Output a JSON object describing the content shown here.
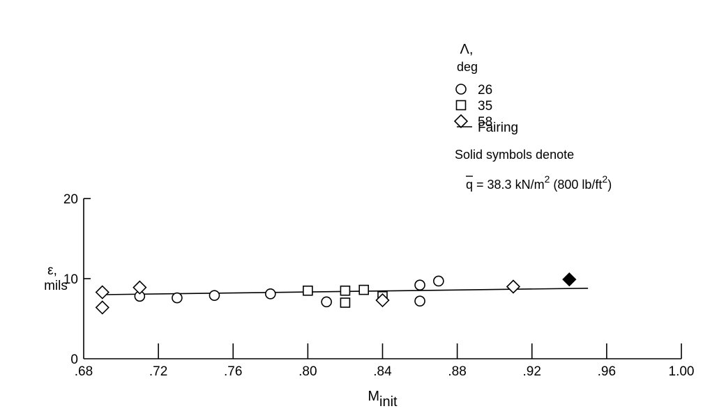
{
  "chart_data": {
    "type": "scatter",
    "xlabel": {
      "main": "M",
      "sub": "init"
    },
    "ylabel": {
      "line1": "ε,",
      "line2": "mils"
    },
    "xlim": [
      0.68,
      1.0
    ],
    "ylim": [
      0,
      20
    ],
    "x_ticks": [
      0.68,
      0.72,
      0.76,
      0.8,
      0.84,
      0.88,
      0.92,
      0.96,
      1.0
    ],
    "x_tick_labels": [
      ".68",
      ".72",
      ".76",
      ".80",
      ".84",
      ".88",
      ".92",
      ".96",
      "1.00"
    ],
    "y_ticks": [
      0,
      10,
      20
    ],
    "y_tick_labels": [
      "0",
      "10",
      "20"
    ],
    "grid": false,
    "legend": {
      "title_line1": "Λ,",
      "title_line2": "deg",
      "position": "top-right",
      "fairing_label": "Fairing",
      "note_line1": "Solid symbols denote",
      "note_line2": {
        "q": "q",
        "eq": " = 38.3 kN/m",
        "exp1": "2",
        "mid": " (800 lb/ft",
        "exp2": "2",
        "end": ")"
      }
    },
    "series": [
      {
        "name": "26",
        "marker": "circle",
        "points": [
          {
            "x": 0.71,
            "y": 7.8
          },
          {
            "x": 0.73,
            "y": 7.6
          },
          {
            "x": 0.75,
            "y": 7.9
          },
          {
            "x": 0.78,
            "y": 8.1
          },
          {
            "x": 0.81,
            "y": 7.1
          },
          {
            "x": 0.86,
            "y": 9.2
          },
          {
            "x": 0.86,
            "y": 7.2
          },
          {
            "x": 0.87,
            "y": 9.7
          }
        ]
      },
      {
        "name": "35",
        "marker": "square",
        "points": [
          {
            "x": 0.8,
            "y": 8.5
          },
          {
            "x": 0.82,
            "y": 8.5
          },
          {
            "x": 0.82,
            "y": 7.0
          },
          {
            "x": 0.83,
            "y": 8.6
          },
          {
            "x": 0.84,
            "y": 7.8
          }
        ]
      },
      {
        "name": "58",
        "marker": "diamond",
        "points": [
          {
            "x": 0.69,
            "y": 8.3
          },
          {
            "x": 0.69,
            "y": 6.4
          },
          {
            "x": 0.71,
            "y": 8.9
          },
          {
            "x": 0.84,
            "y": 7.3
          },
          {
            "x": 0.91,
            "y": 9.0
          },
          {
            "x": 0.94,
            "y": 9.9,
            "solid": true
          }
        ]
      }
    ],
    "fairing": {
      "points": [
        {
          "x": 0.69,
          "y": 8.0
        },
        {
          "x": 0.95,
          "y": 8.8
        }
      ]
    }
  }
}
